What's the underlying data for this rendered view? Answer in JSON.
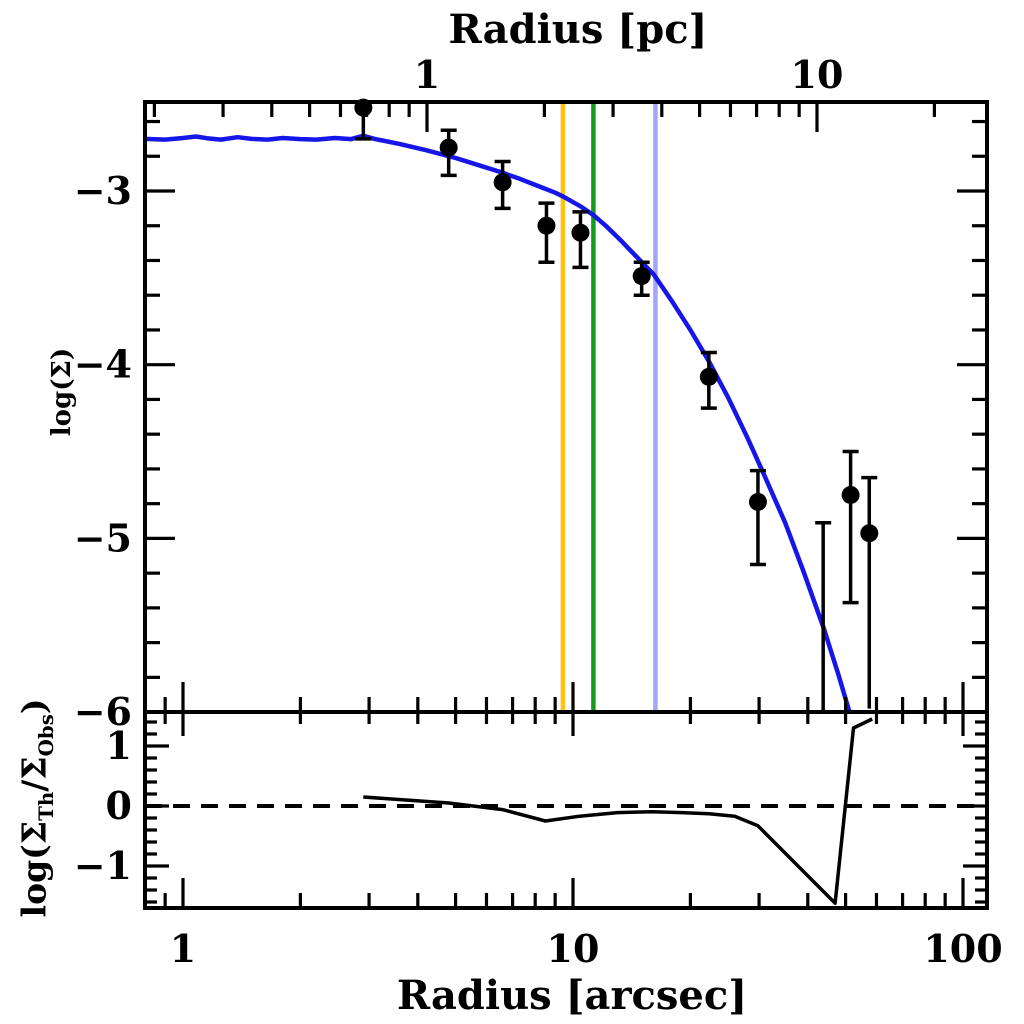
{
  "chart_data": [
    {
      "type": "scatter",
      "panel": "surface-brightness-profile",
      "xlabel_top": "Radius [pc]",
      "ylabel": "log(Σ)",
      "x_axis": {
        "scale": "log",
        "unit": "arcsec",
        "range": [
          0.8,
          115
        ],
        "major_ticks": [
          1,
          10,
          100
        ]
      },
      "x_axis_top": {
        "scale": "log",
        "unit": "pc",
        "range": [
          0.19,
          27.3
        ],
        "major_ticks": [
          1,
          10
        ],
        "tick_labels": [
          "1",
          "10"
        ],
        "arcsec_per_pc": 4.223
      },
      "y_axis": {
        "range": [
          -6.0,
          -2.49
        ],
        "major_ticks": [
          -3,
          -4,
          -5,
          -6
        ],
        "minor_step": 0.2
      },
      "point_color": "#000000",
      "model_color": "#1616e8",
      "points": [
        {
          "r": 2.9,
          "logSigma": -2.52,
          "err_lo": -2.7,
          "err_hi": -2.49,
          "cap_top": false,
          "cap_bottom": true
        },
        {
          "r": 4.8,
          "logSigma": -2.75,
          "err_lo": -2.91,
          "err_hi": -2.65,
          "cap_top": true,
          "cap_bottom": true
        },
        {
          "r": 6.6,
          "logSigma": -2.95,
          "err_lo": -3.1,
          "err_hi": -2.83,
          "cap_top": true,
          "cap_bottom": true
        },
        {
          "r": 8.55,
          "logSigma": -3.2,
          "err_lo": -3.41,
          "err_hi": -3.07,
          "cap_top": true,
          "cap_bottom": true
        },
        {
          "r": 10.45,
          "logSigma": -3.24,
          "err_lo": -3.44,
          "err_hi": -3.12,
          "cap_top": true,
          "cap_bottom": true
        },
        {
          "r": 15.0,
          "logSigma": -3.49,
          "err_lo": -3.6,
          "err_hi": -3.41,
          "cap_top": true,
          "cap_bottom": true
        },
        {
          "r": 22.3,
          "logSigma": -4.07,
          "err_lo": -4.25,
          "err_hi": -3.93,
          "cap_top": true,
          "cap_bottom": true
        },
        {
          "r": 29.8,
          "logSigma": -4.79,
          "err_lo": -5.15,
          "err_hi": -4.61,
          "cap_top": true,
          "cap_bottom": true
        },
        {
          "r": 51.5,
          "logSigma": -4.75,
          "err_lo": -5.37,
          "err_hi": -4.5,
          "cap_top": true,
          "cap_bottom": true
        },
        {
          "r": 57.5,
          "logSigma": -4.97,
          "err_lo": -5.98,
          "err_hi": -4.65,
          "cap_top": true,
          "cap_bottom": false
        }
      ],
      "bare_error_bars": [
        {
          "r": 43.8,
          "top": -4.91,
          "bottom": -6.0,
          "cap_top": true,
          "cap_bottom": false
        }
      ],
      "vertical_lines": [
        {
          "name": "marker-orange",
          "r": 9.42,
          "color": "#ffc112"
        },
        {
          "name": "marker-green",
          "r": 11.28,
          "color": "#149c1e"
        },
        {
          "name": "marker-periwinkle",
          "r": 16.27,
          "color": "#a2a6f5"
        }
      ],
      "model_curve": [
        [
          0.8,
          -2.7
        ],
        [
          0.9,
          -2.704
        ],
        [
          1.0,
          -2.695
        ],
        [
          1.08,
          -2.686
        ],
        [
          1.15,
          -2.696
        ],
        [
          1.25,
          -2.704
        ],
        [
          1.38,
          -2.69
        ],
        [
          1.5,
          -2.7
        ],
        [
          1.65,
          -2.704
        ],
        [
          1.8,
          -2.695
        ],
        [
          2.0,
          -2.701
        ],
        [
          2.2,
          -2.704
        ],
        [
          2.45,
          -2.695
        ],
        [
          2.7,
          -2.701
        ],
        [
          2.9,
          -2.682
        ],
        [
          3.1,
          -2.7
        ],
        [
          3.6,
          -2.73
        ],
        [
          4.2,
          -2.765
        ],
        [
          5.0,
          -2.81
        ],
        [
          5.8,
          -2.855
        ],
        [
          6.5,
          -2.89
        ],
        [
          7.3,
          -2.93
        ],
        [
          8.0,
          -2.965
        ],
        [
          9.0,
          -3.01
        ],
        [
          9.4,
          -3.03
        ],
        [
          10.4,
          -3.085
        ],
        [
          11.3,
          -3.14
        ],
        [
          12.2,
          -3.205
        ],
        [
          13.2,
          -3.28
        ],
        [
          14.5,
          -3.375
        ],
        [
          16.1,
          -3.48
        ],
        [
          18.0,
          -3.64
        ],
        [
          20.0,
          -3.8
        ],
        [
          22.3,
          -3.98
        ],
        [
          25.0,
          -4.19
        ],
        [
          28.0,
          -4.42
        ],
        [
          31.0,
          -4.64
        ],
        [
          35.0,
          -4.91
        ],
        [
          39.0,
          -5.19
        ],
        [
          44.0,
          -5.52
        ],
        [
          48.0,
          -5.79
        ],
        [
          51.0,
          -5.99
        ],
        [
          52.5,
          -6.12
        ]
      ]
    },
    {
      "type": "line",
      "panel": "residuals",
      "xlabel": "Radius [arcsec]",
      "ylabel_plain": "log(Σ_Th/Σ_Obs)",
      "ylabel_parts": [
        {
          "text": "log(Σ"
        },
        {
          "text": "Th",
          "sub": true
        },
        {
          "text": "/Σ"
        },
        {
          "text": "Obs",
          "sub": true
        },
        {
          "text": ")"
        }
      ],
      "x_axis": {
        "scale": "log",
        "unit": "arcsec",
        "range": [
          0.8,
          115
        ],
        "major_ticks": [
          1,
          10,
          100
        ],
        "tick_labels": [
          "1",
          "10",
          "100"
        ]
      },
      "y_axis": {
        "range": [
          -1.7,
          1.57
        ],
        "major_ticks": [
          1,
          0,
          -1
        ],
        "minor_step": 0.2
      },
      "zero_line": {
        "value": 0,
        "style": "dashed",
        "color": "#000000"
      },
      "curve_color": "#000000",
      "curve": [
        [
          2.9,
          0.15
        ],
        [
          4.8,
          0.05
        ],
        [
          6.6,
          -0.06
        ],
        [
          8.5,
          -0.25
        ],
        [
          10.4,
          -0.17
        ],
        [
          13.0,
          -0.11
        ],
        [
          16.0,
          -0.095
        ],
        [
          19.0,
          -0.11
        ],
        [
          22.3,
          -0.13
        ],
        [
          26.0,
          -0.17
        ],
        [
          29.8,
          -0.33
        ],
        [
          47.0,
          -1.62
        ],
        [
          52.4,
          1.3
        ],
        [
          58.5,
          1.45
        ]
      ]
    }
  ]
}
